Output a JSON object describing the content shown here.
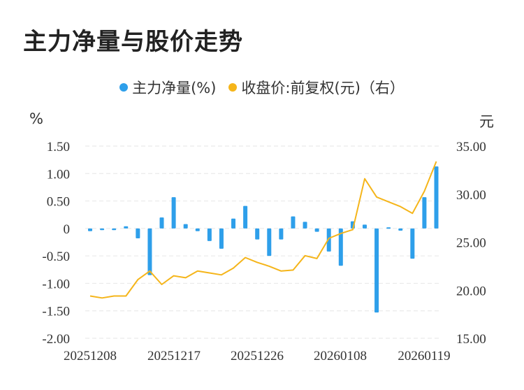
{
  "title": "主力净量与股价走势",
  "legend": {
    "left_series": "主力净量(%)",
    "right_series": "收盘价:前复权(元)（右）"
  },
  "units": {
    "left": "%",
    "right": "元"
  },
  "colors": {
    "bar": "#2E9FEA",
    "line": "#F5B51A",
    "grid": "#E6E6E6"
  },
  "chart_data": {
    "type": "bar+line",
    "x_ticks": [
      "20251208",
      "20251217",
      "20251226",
      "20260108",
      "20260119"
    ],
    "left_axis": {
      "range": [
        -2.0,
        1.5
      ],
      "ticks": [
        "1.50",
        "1.00",
        "0.50",
        "0",
        "-0.50",
        "-1.00",
        "-1.50",
        "-2.00"
      ]
    },
    "right_axis": {
      "range": [
        15.0,
        35.0
      ],
      "ticks": [
        "35.00",
        "30.00",
        "25.00",
        "20.00",
        "15.00"
      ]
    },
    "series": [
      {
        "name": "主力净量(%)",
        "type": "bar",
        "axis": "left",
        "values": [
          -0.05,
          -0.03,
          -0.03,
          0.04,
          -0.18,
          -0.85,
          0.2,
          0.57,
          0.08,
          -0.05,
          -0.23,
          -0.37,
          0.18,
          0.41,
          -0.2,
          -0.5,
          -0.2,
          0.22,
          0.12,
          -0.06,
          -0.42,
          -0.68,
          0.13,
          0.07,
          -1.53,
          0.02,
          -0.04,
          -0.55,
          0.57,
          1.13
        ]
      },
      {
        "name": "收盘价:前复权(元)（右）",
        "type": "line",
        "axis": "right",
        "values": [
          19.4,
          19.2,
          19.4,
          19.4,
          21.1,
          22.0,
          20.6,
          21.5,
          21.3,
          22.0,
          21.8,
          21.6,
          22.3,
          23.4,
          22.9,
          22.5,
          22.0,
          22.1,
          23.6,
          23.3,
          25.4,
          25.9,
          26.3,
          31.6,
          29.7,
          29.2,
          28.7,
          28.0,
          30.3,
          33.4
        ]
      }
    ]
  }
}
